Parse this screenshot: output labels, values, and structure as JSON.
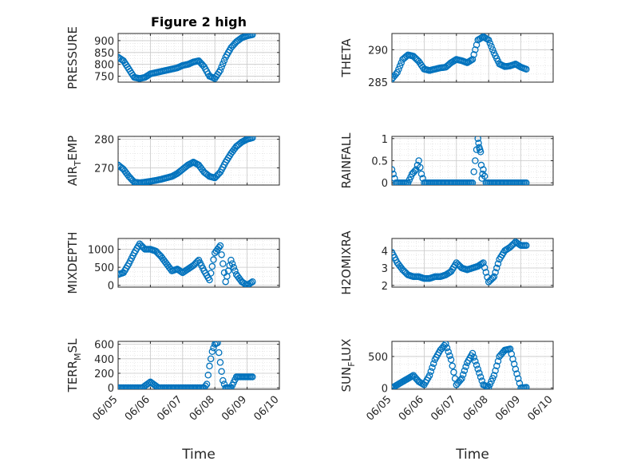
{
  "figure": {
    "title": "Figure 2 high",
    "marker_color": "#0072bd"
  },
  "chart_data": [
    {
      "type": "scatter",
      "ylabel": "PRESSURE",
      "title": "Figure 2 high",
      "xlabel": "",
      "ylim": [
        725,
        930
      ],
      "yticks": [
        750,
        800,
        850,
        900
      ],
      "xlim": [
        "06/05",
        "06/10"
      ],
      "grid": true,
      "series": [
        {
          "x": [
            "06/05 00:00",
            "06/05 04:00",
            "06/05 08:00",
            "06/05 12:00",
            "06/05 16:00",
            "06/05 20:00",
            "06/06 00:00",
            "06/06 04:00",
            "06/06 08:00",
            "06/06 12:00",
            "06/06 16:00",
            "06/06 20:00",
            "06/07 00:00",
            "06/07 04:00",
            "06/07 08:00",
            "06/07 12:00",
            "06/07 16:00",
            "06/07 20:00",
            "06/08 00:00",
            "06/08 04:00",
            "06/08 08:00",
            "06/08 12:00",
            "06/08 16:00",
            "06/08 20:00",
            "06/09 00:00",
            "06/09 04:00"
          ],
          "y": [
            830,
            815,
            780,
            745,
            740,
            745,
            760,
            765,
            770,
            775,
            780,
            785,
            795,
            800,
            810,
            815,
            790,
            750,
            740,
            775,
            830,
            870,
            895,
            912,
            920,
            925
          ]
        }
      ]
    },
    {
      "type": "scatter",
      "ylabel": "THETA",
      "title": "",
      "xlabel": "",
      "ylim": [
        285,
        292.5
      ],
      "yticks": [
        285,
        290
      ],
      "xlim": [
        "06/05",
        "06/10"
      ],
      "grid": true,
      "series": [
        {
          "x": [
            "06/05 00:00",
            "06/05 04:00",
            "06/05 08:00",
            "06/05 12:00",
            "06/05 16:00",
            "06/05 20:00",
            "06/06 00:00",
            "06/06 04:00",
            "06/06 08:00",
            "06/06 12:00",
            "06/06 16:00",
            "06/06 20:00",
            "06/07 00:00",
            "06/07 04:00",
            "06/07 08:00",
            "06/07 12:00",
            "06/07 16:00",
            "06/07 20:00",
            "06/08 00:00",
            "06/08 04:00",
            "06/08 08:00",
            "06/08 12:00",
            "06/08 16:00",
            "06/08 20:00",
            "06/09 00:00",
            "06/09 04:00"
          ],
          "y": [
            285.5,
            286.5,
            288.5,
            289.2,
            289.0,
            288.2,
            287.0,
            286.8,
            287.0,
            287.2,
            287.3,
            288.0,
            288.5,
            288.3,
            288.0,
            288.5,
            291.5,
            292.0,
            291.5,
            289.5,
            287.8,
            287.4,
            287.5,
            287.8,
            287.3,
            287.0
          ]
        }
      ]
    },
    {
      "type": "scatter",
      "ylabel": "AIR_TEMP",
      "ylabel_main": "AIR",
      "ylabel_sub": "T",
      "ylabel_rest": "EMP",
      "title": "",
      "xlabel": "",
      "ylim": [
        264,
        281
      ],
      "yticks": [
        270,
        280
      ],
      "xlim": [
        "06/05",
        "06/10"
      ],
      "grid": true,
      "series": [
        {
          "x": [
            "06/05 00:00",
            "06/05 04:00",
            "06/05 08:00",
            "06/05 12:00",
            "06/05 16:00",
            "06/05 20:00",
            "06/06 00:00",
            "06/06 04:00",
            "06/06 08:00",
            "06/06 12:00",
            "06/06 16:00",
            "06/06 20:00",
            "06/07 00:00",
            "06/07 04:00",
            "06/07 08:00",
            "06/07 12:00",
            "06/07 16:00",
            "06/07 20:00",
            "06/08 00:00",
            "06/08 04:00",
            "06/08 08:00",
            "06/08 12:00",
            "06/08 16:00",
            "06/08 20:00",
            "06/09 00:00",
            "06/09 04:00"
          ],
          "y": [
            271.0,
            269.5,
            267.0,
            265.0,
            264.8,
            265.0,
            265.3,
            265.6,
            266.0,
            266.5,
            267.0,
            268.0,
            269.5,
            271.0,
            272.0,
            271.0,
            268.5,
            267.0,
            266.5,
            268.5,
            272.0,
            275.0,
            277.5,
            279.0,
            280.0,
            280.5
          ]
        }
      ]
    },
    {
      "type": "scatter",
      "ylabel": "RAINFALL",
      "title": "",
      "xlabel": "",
      "ylim": [
        -0.05,
        1.05
      ],
      "yticks": [
        0,
        0.5,
        1
      ],
      "ytick_labels": [
        "0",
        "0.5",
        "1"
      ],
      "xlim": [
        "06/05",
        "06/10"
      ],
      "grid": true,
      "series": [
        {
          "x": [
            "06/05 00:00",
            "06/05 03:00",
            "06/05 06:00",
            "06/05 09:00",
            "06/05 12:00",
            "06/05 15:00",
            "06/05 18:00",
            "06/05 20:00",
            "06/05 22:00",
            "06/06 00:00",
            "06/06 03:00",
            "06/06 06:00",
            "06/06 12:00",
            "06/06 18:00",
            "06/07 00:00",
            "06/07 06:00",
            "06/07 12:00",
            "06/07 16:00",
            "06/07 17:00",
            "06/07 18:00",
            "06/07 19:00",
            "06/07 20:00",
            "06/07 22:00",
            "06/08 00:00",
            "06/08 06:00",
            "06/08 12:00",
            "06/08 18:00",
            "06/09 00:00",
            "06/09 04:00"
          ],
          "y": [
            0.3,
            0,
            0,
            0,
            0,
            0.2,
            0.3,
            0.5,
            0.2,
            0,
            0,
            0,
            0,
            0,
            0,
            0,
            0,
            1.0,
            0.8,
            0.7,
            0.1,
            0.3,
            0,
            0,
            0,
            0,
            0,
            0,
            0
          ]
        }
      ]
    },
    {
      "type": "scatter",
      "ylabel": "MIXDEPTH",
      "title": "",
      "xlabel": "",
      "ylim": [
        -50,
        1300
      ],
      "yticks": [
        0,
        500,
        1000
      ],
      "xlim": [
        "06/05",
        "06/10"
      ],
      "grid": true,
      "series": [
        {
          "x": [
            "06/05 00:00",
            "06/05 04:00",
            "06/05 08:00",
            "06/05 12:00",
            "06/05 16:00",
            "06/05 20:00",
            "06/06 00:00",
            "06/06 04:00",
            "06/06 08:00",
            "06/06 12:00",
            "06/06 16:00",
            "06/06 20:00",
            "06/07 00:00",
            "06/07 04:00",
            "06/07 08:00",
            "06/07 12:00",
            "06/07 16:00",
            "06/07 20:00",
            "06/08 00:00",
            "06/08 04:00",
            "06/08 08:00",
            "06/08 12:00",
            "06/08 16:00",
            "06/08 20:00",
            "06/09 00:00",
            "06/09 04:00"
          ],
          "y": [
            300,
            350,
            600,
            900,
            1150,
            1000,
            1000,
            950,
            800,
            600,
            400,
            450,
            350,
            450,
            550,
            700,
            400,
            150,
            900,
            1100,
            100,
            700,
            300,
            100,
            0,
            100
          ]
        }
      ]
    },
    {
      "type": "scatter",
      "ylabel": "H2OMIXRA",
      "title": "",
      "xlabel": "",
      "ylim": [
        1.9,
        4.7
      ],
      "yticks": [
        2,
        3,
        4
      ],
      "xlim": [
        "06/05",
        "06/10"
      ],
      "grid": true,
      "series": [
        {
          "x": [
            "06/05 00:00",
            "06/05 04:00",
            "06/05 08:00",
            "06/05 12:00",
            "06/05 16:00",
            "06/05 20:00",
            "06/06 00:00",
            "06/06 04:00",
            "06/06 08:00",
            "06/06 12:00",
            "06/06 16:00",
            "06/06 20:00",
            "06/07 00:00",
            "06/07 04:00",
            "06/07 08:00",
            "06/07 12:00",
            "06/07 16:00",
            "06/07 20:00",
            "06/08 00:00",
            "06/08 04:00",
            "06/08 08:00",
            "06/08 12:00",
            "06/08 16:00",
            "06/08 20:00",
            "06/09 00:00",
            "06/09 04:00"
          ],
          "y": [
            3.9,
            3.3,
            2.9,
            2.6,
            2.5,
            2.5,
            2.4,
            2.4,
            2.5,
            2.5,
            2.6,
            2.8,
            3.3,
            3.0,
            2.9,
            3.0,
            3.1,
            3.3,
            2.2,
            2.5,
            3.5,
            4.0,
            4.2,
            4.5,
            4.3,
            4.3
          ]
        }
      ]
    },
    {
      "type": "scatter",
      "ylabel": "TERR_MSL",
      "ylabel_main": "TERR",
      "ylabel_sub": "M",
      "ylabel_rest": "SL",
      "title": "",
      "xlabel": "Time",
      "ylim": [
        -20,
        640
      ],
      "yticks": [
        0,
        200,
        400,
        600
      ],
      "xlim": [
        "06/05",
        "06/10"
      ],
      "xticks": [
        "06/05",
        "06/06",
        "06/07",
        "06/08",
        "06/09",
        "06/10"
      ],
      "grid": true,
      "series": [
        {
          "x": [
            "06/05 00:00",
            "06/05 06:00",
            "06/05 12:00",
            "06/05 18:00",
            "06/06 00:00",
            "06/06 06:00",
            "06/06 12:00",
            "06/06 18:00",
            "06/07 00:00",
            "06/07 06:00",
            "06/07 12:00",
            "06/07 16:00",
            "06/07 18:00",
            "06/07 20:00",
            "06/07 22:00",
            "06/08 00:00",
            "06/08 02:00",
            "06/08 04:00",
            "06/08 06:00",
            "06/08 08:00",
            "06/08 12:00",
            "06/08 16:00",
            "06/08 20:00",
            "06/09 00:00",
            "06/09 04:00"
          ],
          "y": [
            0,
            0,
            0,
            0,
            80,
            0,
            0,
            0,
            0,
            0,
            0,
            0,
            50,
            300,
            500,
            600,
            620,
            350,
            100,
            0,
            0,
            150,
            150,
            150,
            150
          ]
        }
      ]
    },
    {
      "type": "scatter",
      "ylabel": "SUN_FLUX",
      "ylabel_main": "SUN",
      "ylabel_sub": "F",
      "ylabel_rest": "LUX",
      "title": "",
      "xlabel": "Time",
      "ylim": [
        -20,
        740
      ],
      "yticks": [
        0,
        500
      ],
      "xlim": [
        "06/05",
        "06/10"
      ],
      "xticks": [
        "06/05",
        "06/06",
        "06/07",
        "06/08",
        "06/09",
        "06/10"
      ],
      "grid": true,
      "series": [
        {
          "x": [
            "06/05 00:00",
            "06/05 04:00",
            "06/05 08:00",
            "06/05 12:00",
            "06/05 16:00",
            "06/05 20:00",
            "06/06 00:00",
            "06/06 04:00",
            "06/06 08:00",
            "06/06 12:00",
            "06/06 16:00",
            "06/06 20:00",
            "06/07 00:00",
            "06/07 04:00",
            "06/07 08:00",
            "06/07 12:00",
            "06/07 16:00",
            "06/07 20:00",
            "06/08 00:00",
            "06/08 04:00",
            "06/08 08:00",
            "06/08 12:00",
            "06/08 16:00",
            "06/08 20:00",
            "06/09 00:00",
            "06/09 04:00"
          ],
          "y": [
            0,
            50,
            100,
            150,
            200,
            100,
            50,
            200,
            450,
            600,
            700,
            450,
            50,
            150,
            400,
            550,
            300,
            50,
            10,
            200,
            500,
            600,
            620,
            300,
            0,
            10
          ]
        }
      ]
    }
  ]
}
